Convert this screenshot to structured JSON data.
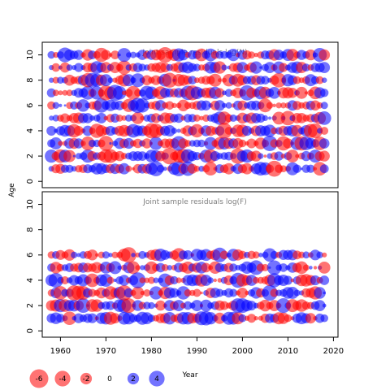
{
  "chart_data": {
    "type": "scatter",
    "subtype": "bubble-residuals",
    "ylabel": "Age",
    "xlabel": "Year",
    "xlim": [
      1956,
      2021
    ],
    "x_ticks": [
      1960,
      1970,
      1980,
      1990,
      2000,
      2010,
      2020
    ],
    "colors": {
      "positive": "#0000ff",
      "negative": "#ff0000",
      "opacity": 0.55
    },
    "panels": [
      {
        "title": "Joint sample residuals log(N)",
        "ylim": [
          -0.5,
          11
        ],
        "y_ticks": [
          0,
          2,
          4,
          6,
          8,
          10
        ],
        "year_range": [
          1958,
          2018
        ],
        "ages": [
          1,
          2,
          3,
          4,
          5,
          6,
          7,
          8,
          9,
          10
        ],
        "grid": "see-script"
      },
      {
        "title": "Joint sample residuals log(F)",
        "ylim": [
          -0.5,
          11
        ],
        "y_ticks": [
          0,
          2,
          4,
          6,
          8,
          10
        ],
        "year_range": [
          1958,
          2018
        ],
        "ages": [
          1,
          2,
          3,
          4,
          5,
          6
        ],
        "grid": "see-script"
      }
    ],
    "legend": {
      "placement": "bottom-left",
      "entries": [
        {
          "label": "-6",
          "value": -6
        },
        {
          "label": "-4",
          "value": -4
        },
        {
          "label": "-2",
          "value": -2
        },
        {
          "label": "0",
          "value": 0
        },
        {
          "label": "2",
          "value": 2
        },
        {
          "label": "4",
          "value": 4
        }
      ]
    }
  }
}
